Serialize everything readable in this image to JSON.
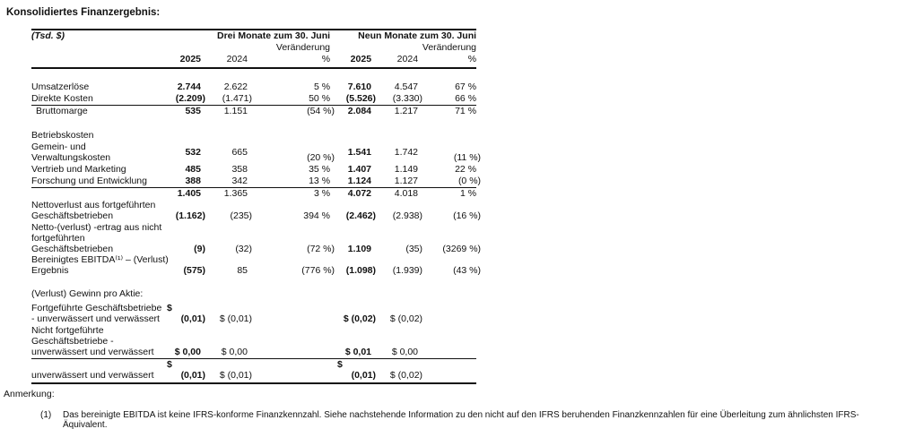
{
  "page_title": "Konsolidiertes Finanzergebnis:",
  "table": {
    "unit_label": "(Tsd. $)",
    "group_headers": [
      "Drei Monate zum 30. Juni",
      "Neun Monate zum 30. Juni"
    ],
    "change_label": "Veränderung",
    "col_headers": [
      "2025",
      "2024",
      "%",
      "2025",
      "2024",
      "%"
    ],
    "rows": [
      {
        "spacer": 14
      },
      {
        "label": "Umsatzerlöse",
        "cells": [
          "2.744",
          "2.622",
          "5 %",
          "7.610",
          "4.547",
          "67 %"
        ]
      },
      {
        "label": "Direkte Kosten",
        "cells": [
          "(2.209)",
          "(1.471)",
          "50 %",
          "(5.526)",
          "(3.330)",
          "66 %"
        ],
        "rule_below": "single"
      },
      {
        "label": "Bruttomarge",
        "indent": true,
        "cells": [
          "535",
          "1.151",
          "(54 %)",
          "2.084",
          "1.217",
          "71 %"
        ]
      },
      {
        "spacer": 15
      },
      {
        "label": "Betriebskosten",
        "cells": [
          "",
          "",
          "",
          "",
          "",
          ""
        ]
      },
      {
        "label": "Gemein- und\nVerwaltungskosten",
        "cells": [
          "532",
          "665",
          "(20 %)",
          "1.541",
          "1.742",
          "(11 %)"
        ],
        "valign": [
          "middle",
          "middle",
          "bottom",
          "middle",
          "middle",
          "bottom"
        ]
      },
      {
        "label": "Vertrieb und Marketing",
        "cells": [
          "485",
          "358",
          "35 %",
          "1.407",
          "1.149",
          "22 %"
        ]
      },
      {
        "label": "Forschung und Entwicklung",
        "cells": [
          "388",
          "342",
          "13 %",
          "1.124",
          "1.127",
          "(0 %)"
        ],
        "rule_below": "single"
      },
      {
        "label": "",
        "cells": [
          "1.405",
          "1.365",
          "3 %",
          "4.072",
          "4.018",
          "1 %"
        ]
      },
      {
        "label": "Nettoverlust aus fortgeführten\nGeschäftsbetrieben",
        "cells": [
          "(1.162)",
          "(235)",
          "394 %",
          "(2.462)",
          "(2.938)",
          "(16 %)"
        ]
      },
      {
        "label": "Netto-(verlust) -ertrag aus nicht\nfortgeführten\nGeschäftsbetrieben",
        "cells": [
          "(9)",
          "(32)",
          "(72 %)",
          "1.109",
          "(35)",
          "(3269 %)"
        ]
      },
      {
        "label": "Bereinigtes EBITDA⁽¹⁾ – (Verlust)\nErgebnis",
        "cells": [
          "(575)",
          "85",
          "(776 %)",
          "(1.098)",
          "(1.939)",
          "(43 %)"
        ]
      },
      {
        "spacer": 13
      },
      {
        "label": "(Verlust) Gewinn pro Aktie:",
        "cells": [
          "",
          "",
          "",
          "",
          "",
          ""
        ]
      },
      {
        "spacer": 3
      },
      {
        "label": "Fortgeführte Geschäftsbetriebe\n- unverwässert und verwässert",
        "cells": [
          "$\n(0,01)",
          "$ (0,01)",
          "",
          "$ (0,02)",
          "$ (0,02)",
          ""
        ]
      },
      {
        "label": "Nicht fortgeführte\nGeschäftsbetriebe -\nunverwässert und verwässert",
        "cells": [
          "$ 0,00",
          "$ 0,00",
          "",
          "$ 0,01",
          "$ 0,00",
          ""
        ],
        "rule_below": "single"
      },
      {
        "label": "unverwässert und verwässert",
        "cells": [
          "$\n(0,01)",
          "$ (0,01)",
          "",
          "$\n(0,01)",
          "$ (0,02)",
          ""
        ],
        "rule_below": "thick"
      }
    ]
  },
  "footnote": {
    "heading": "Anmerkung:",
    "number": "(1)",
    "text": "Das bereinigte EBITDA ist keine IFRS-konforme Finanzkennzahl. Siehe nachstehende Information zu den nicht auf den IFRS beruhenden Finanzkennzahlen für eine Überleitung zum ähnlichsten IFRS-Äquivalent."
  }
}
